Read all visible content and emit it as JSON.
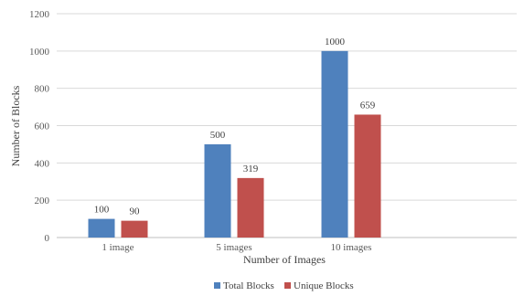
{
  "chart_data": {
    "type": "bar",
    "title": "",
    "xlabel": "Number of Images",
    "ylabel": "Number of Blocks",
    "categories": [
      "1 image",
      "5 images",
      "10 images"
    ],
    "series": [
      {
        "name": "Total Blocks",
        "values": [
          100,
          500,
          1000
        ],
        "color": "#4f81bd"
      },
      {
        "name": "Unique Blocks",
        "values": [
          90,
          319,
          659
        ],
        "color": "#c0504d"
      }
    ],
    "ylim": [
      0,
      1200
    ],
    "yticks": [
      0,
      200,
      400,
      600,
      800,
      1000,
      1200
    ],
    "grid": true,
    "legend_position": "bottom-center"
  }
}
